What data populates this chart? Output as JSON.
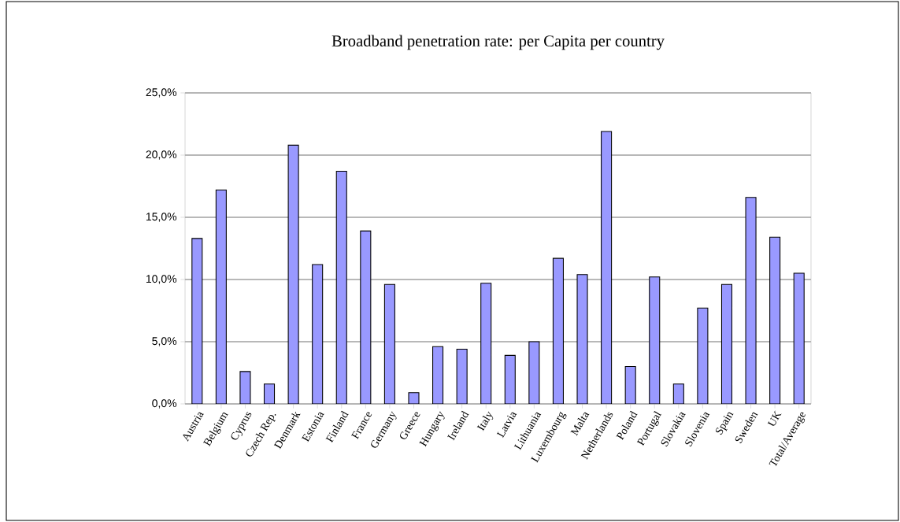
{
  "chart_data": {
    "type": "bar",
    "title": "Broadband penetration rate: per Capita per country",
    "categories": [
      "Austria",
      "Belgium",
      "Cyprus",
      "Czech Rep.",
      "Denmark",
      "Estonia",
      "Finland",
      "France",
      "Germany",
      "Greece",
      "Hungary",
      "Ireland",
      "Italy",
      "Latvia",
      "Lithuania",
      "Luxembourg",
      "Malta",
      "Netherlands",
      "Poland",
      "Portugal",
      "Slovakia",
      "Slovenia",
      "Spain",
      "Sweden",
      "UK",
      "Total/Average"
    ],
    "values": [
      13.3,
      17.2,
      2.6,
      1.6,
      20.8,
      11.2,
      18.7,
      13.9,
      9.6,
      0.9,
      4.6,
      4.4,
      9.7,
      3.9,
      5.0,
      11.7,
      10.4,
      21.9,
      3.0,
      10.2,
      1.6,
      7.7,
      9.6,
      16.6,
      13.4,
      10.5
    ],
    "color": "#9999ff",
    "ylim": [
      0,
      25
    ],
    "yticks": [
      {
        "value": 0,
        "label": "0,0%"
      },
      {
        "value": 5,
        "label": "5,0%"
      },
      {
        "value": 10,
        "label": "10,0%"
      },
      {
        "value": 15,
        "label": "15,0%"
      },
      {
        "value": 20,
        "label": "20,0%"
      },
      {
        "value": 25,
        "label": "25,0%"
      }
    ],
    "grid": "y"
  }
}
